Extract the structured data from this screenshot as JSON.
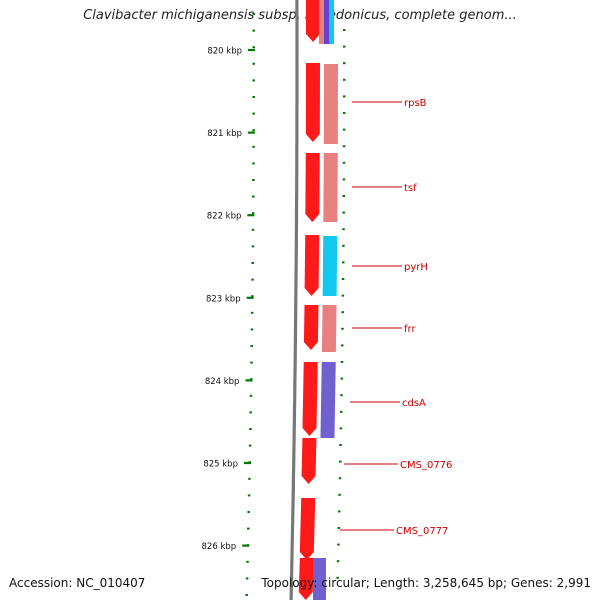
{
  "title": "Clavibacter michiganensis subsp. sepedonicus, complete genom...",
  "footer": {
    "accession": "Accession: NC_010407",
    "summary": "Topology: circular; Length: 3,258,645 bp; Genes: 2,991"
  },
  "colors": {
    "cds": "#ff1a1a",
    "gene_pink": "#e88080",
    "gene_cyan": "#10c8f0",
    "gene_purple": "#7060d0",
    "tick": "#007700",
    "label": "#cc0000",
    "backbone": "#777777"
  },
  "axis": {
    "unit": "kbp",
    "ticks": [
      {
        "kbp": 820,
        "label": "820 kbp"
      },
      {
        "kbp": 821,
        "label": "821 kbp"
      },
      {
        "kbp": 822,
        "label": "822 kbp"
      },
      {
        "kbp": 823,
        "label": "823 kbp"
      },
      {
        "kbp": 824,
        "label": "824 kbp"
      },
      {
        "kbp": 825,
        "label": "825 kbp"
      },
      {
        "kbp": 826,
        "label": "826 kbp"
      }
    ]
  },
  "genes": [
    {
      "name": "rpsB",
      "start": 820.33,
      "end": 820.97,
      "color": "gene_pink"
    },
    {
      "name": "tsf",
      "start": 821.22,
      "end": 821.88,
      "color": "gene_pink"
    },
    {
      "name": "pyrH",
      "start": 822.22,
      "end": 822.93,
      "color": "gene_cyan"
    },
    {
      "name": "frr",
      "start": 823.07,
      "end": 823.65,
      "color": "gene_pink"
    },
    {
      "name": "cdsA",
      "start": 823.77,
      "end": 824.72,
      "color": "gene_purple"
    },
    {
      "name": "CMS_0776",
      "start": null,
      "end": null,
      "color": "cds"
    },
    {
      "name": "CMS_0777",
      "start": null,
      "end": null,
      "color": "cds"
    }
  ]
}
